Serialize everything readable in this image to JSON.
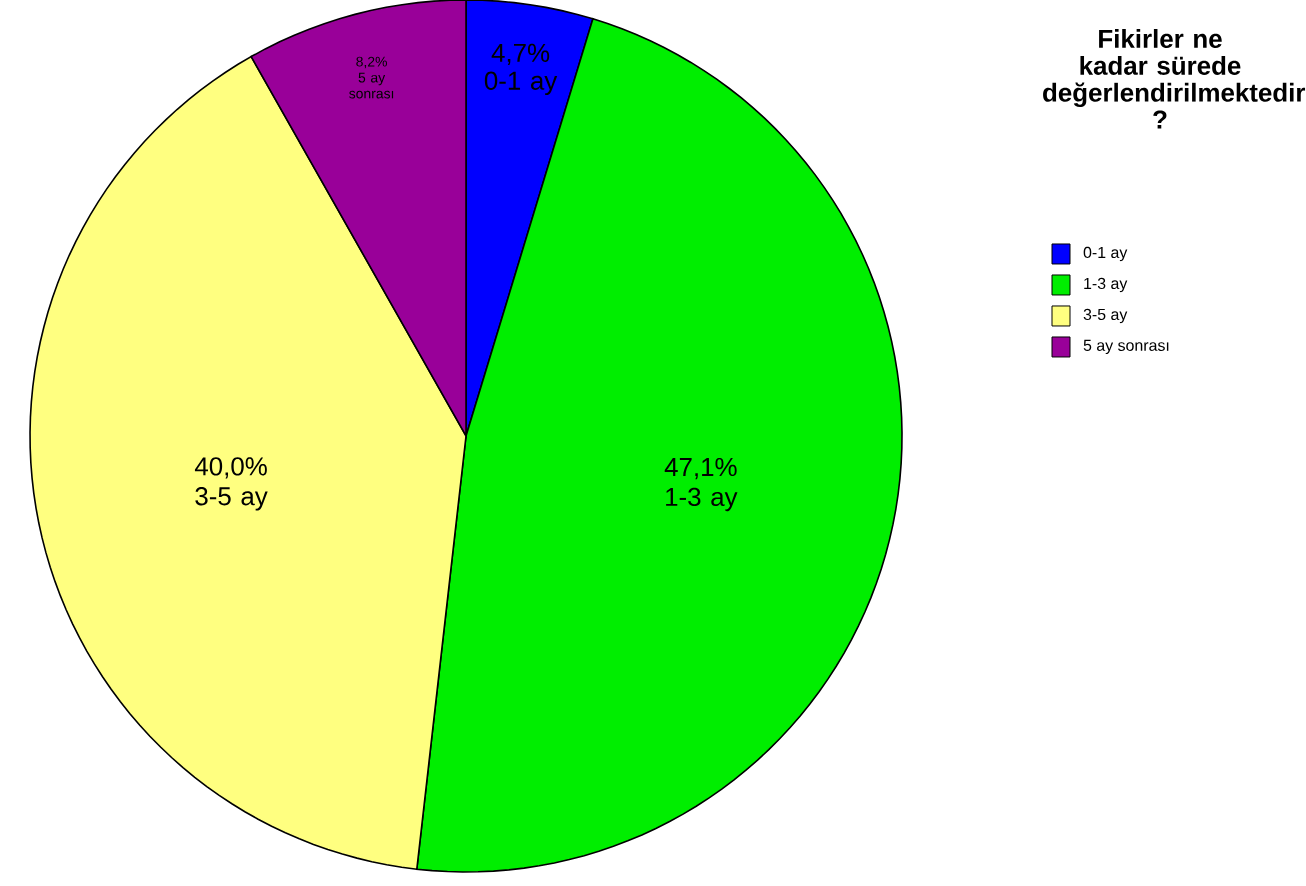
{
  "chart_data": {
    "type": "pie",
    "legend_title": "Fikirler ne kadar sürede değerlendirilmektedir ?",
    "legend": "right",
    "categories": [
      "0-1 ay",
      "1-3 ay",
      "3-5 ay",
      "5 ay sonrası"
    ],
    "values": [
      4.7,
      47.1,
      40.0,
      8.2
    ],
    "value_labels": [
      "4,7%",
      "47,1%",
      "40,0%",
      "8,2%"
    ],
    "colors": [
      "#0000ff",
      "#00ee00",
      "#ffff80",
      "#990099"
    ]
  }
}
